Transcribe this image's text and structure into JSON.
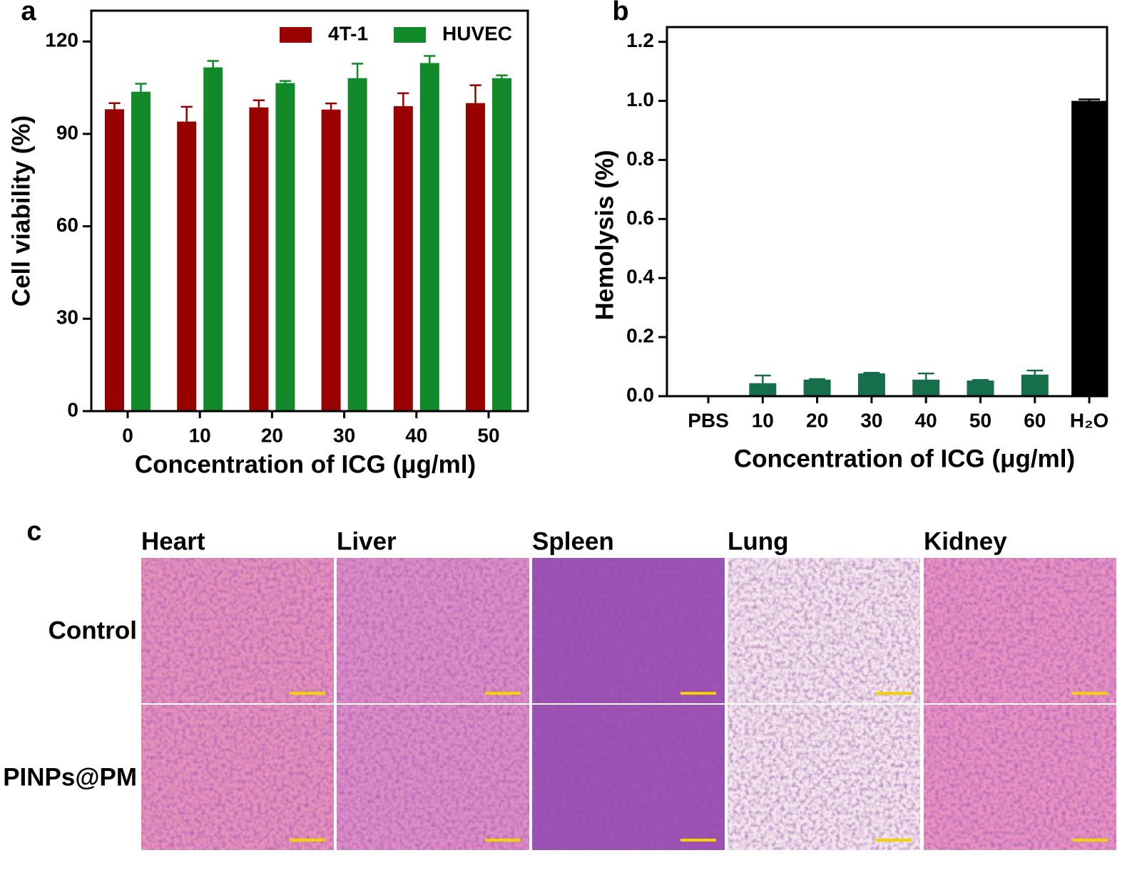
{
  "chart_data": [
    {
      "type": "bar",
      "panel_label": "a",
      "x_label": "Concentration of ICG (μg/ml)",
      "y_label": "Cell viability (%)",
      "categories": [
        "0",
        "10",
        "20",
        "30",
        "40",
        "50"
      ],
      "series": [
        {
          "name": "4T-1",
          "color": "#990000",
          "values": [
            98,
            94,
            98.6,
            97.9,
            99,
            100
          ],
          "errors": [
            2,
            4.8,
            2.3,
            2,
            4.2,
            5.8
          ]
        },
        {
          "name": "HUVEC",
          "color": "#138a2a",
          "values": [
            103.7,
            111.6,
            106.5,
            108.1,
            113,
            108.1
          ],
          "errors": [
            2.6,
            2.1,
            0.7,
            4.7,
            2.3,
            0.9
          ]
        }
      ],
      "ylim": [
        0,
        130
      ],
      "yticks": [
        0,
        30,
        60,
        90,
        120
      ],
      "legend": "top-right"
    },
    {
      "type": "bar",
      "panel_label": "b",
      "x_label": "Concentration of ICG (μg/ml)",
      "y_label": "Hemolysis (%)",
      "categories": [
        "PBS",
        "10",
        "20",
        "30",
        "40",
        "50",
        "60",
        "H₂O"
      ],
      "values": [
        0,
        0.044,
        0.056,
        0.077,
        0.056,
        0.053,
        0.073,
        1.0
      ],
      "errors": [
        0,
        0.026,
        0.002,
        0.002,
        0.021,
        0.002,
        0.014,
        0.005
      ],
      "colors": [
        "#176e4a",
        "#176e4a",
        "#176e4a",
        "#176e4a",
        "#176e4a",
        "#176e4a",
        "#176e4a",
        "#000000"
      ],
      "ylim": [
        0,
        1.25
      ],
      "yticks": [
        {
          "value": 0,
          "label": "0.0"
        },
        0.2,
        0.4,
        0.6,
        0.8,
        {
          "value": 1,
          "label": "1.0"
        },
        1.2
      ]
    }
  ],
  "histology": {
    "panel_label": "c",
    "columns": [
      "Heart",
      "Liver",
      "Spleen",
      "Lung",
      "Kidney"
    ],
    "rows": [
      "Control",
      "PINPs@PM"
    ]
  }
}
